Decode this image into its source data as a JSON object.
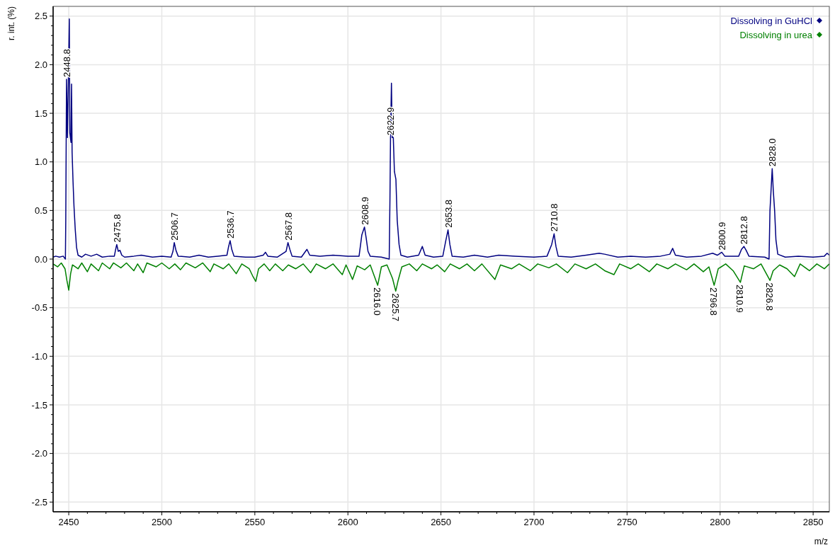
{
  "chart_data": {
    "type": "line",
    "xlabel": "m/z",
    "ylabel": "r. int. (%)",
    "xlim": [
      2441.6,
      2858.7
    ],
    "ylim": [
      -2.6,
      2.6
    ],
    "xticks": [
      2450,
      {
        "value": 2460,
        "label": null
      },
      {
        "value": 2470,
        "label": null
      },
      {
        "value": 2480,
        "label": null
      },
      {
        "value": 2490,
        "label": null
      },
      2500,
      {
        "value": 2510,
        "label": null
      },
      {
        "value": 2520,
        "label": null
      },
      {
        "value": 2530,
        "label": null
      },
      {
        "value": 2540,
        "label": null
      },
      2550,
      {
        "value": 2560,
        "label": null
      },
      {
        "value": 2570,
        "label": null
      },
      {
        "value": 2580,
        "label": null
      },
      {
        "value": 2590,
        "label": null
      },
      2600,
      {
        "value": 2610,
        "label": null
      },
      {
        "value": 2620,
        "label": null
      },
      {
        "value": 2630,
        "label": null
      },
      {
        "value": 2640,
        "label": null
      },
      2650,
      {
        "value": 2660,
        "label": null
      },
      {
        "value": 2670,
        "label": null
      },
      {
        "value": 2680,
        "label": null
      },
      {
        "value": 2690,
        "label": null
      },
      2700,
      {
        "value": 2710,
        "label": null
      },
      {
        "value": 2720,
        "label": null
      },
      {
        "value": 2730,
        "label": null
      },
      {
        "value": 2740,
        "label": null
      },
      2750,
      {
        "value": 2760,
        "label": null
      },
      {
        "value": 2770,
        "label": null
      },
      {
        "value": 2780,
        "label": null
      },
      {
        "value": 2790,
        "label": null
      },
      2800,
      {
        "value": 2810,
        "label": null
      },
      {
        "value": 2820,
        "label": null
      },
      {
        "value": 2830,
        "label": null
      },
      {
        "value": 2840,
        "label": null
      },
      2850
    ],
    "yticks": [
      {
        "value": -2.5,
        "label": "-2.5"
      },
      {
        "value": -2.4,
        "label": null
      },
      {
        "value": -2.3,
        "label": null
      },
      {
        "value": -2.2,
        "label": null
      },
      {
        "value": -2.1,
        "label": null
      },
      {
        "value": -2.0,
        "label": "-2.0"
      },
      {
        "value": -1.9,
        "label": null
      },
      {
        "value": -1.8,
        "label": null
      },
      {
        "value": -1.7,
        "label": null
      },
      {
        "value": -1.6,
        "label": null
      },
      {
        "value": -1.5,
        "label": "-1.5"
      },
      {
        "value": -1.4,
        "label": null
      },
      {
        "value": -1.3,
        "label": null
      },
      {
        "value": -1.2,
        "label": null
      },
      {
        "value": -1.1,
        "label": null
      },
      {
        "value": -1.0,
        "label": "-1.0"
      },
      {
        "value": -0.9,
        "label": null
      },
      {
        "value": -0.8,
        "label": null
      },
      {
        "value": -0.7,
        "label": null
      },
      {
        "value": -0.6,
        "label": null
      },
      {
        "value": -0.5,
        "label": "-0.5"
      },
      {
        "value": -0.4,
        "label": null
      },
      {
        "value": -0.3,
        "label": null
      },
      {
        "value": -0.2,
        "label": null
      },
      {
        "value": -0.1,
        "label": null
      },
      {
        "value": 0,
        "label": "0.0"
      },
      {
        "value": 0.1,
        "label": null
      },
      {
        "value": 0.2,
        "label": null
      },
      {
        "value": 0.3,
        "label": null
      },
      {
        "value": 0.4,
        "label": null
      },
      {
        "value": 0.5,
        "label": "0.5"
      },
      {
        "value": 0.6,
        "label": null
      },
      {
        "value": 0.7,
        "label": null
      },
      {
        "value": 0.8,
        "label": null
      },
      {
        "value": 0.9,
        "label": null
      },
      {
        "value": 1.0,
        "label": "1.0"
      },
      {
        "value": 1.1,
        "label": null
      },
      {
        "value": 1.2,
        "label": null
      },
      {
        "value": 1.3,
        "label": null
      },
      {
        "value": 1.4,
        "label": null
      },
      {
        "value": 1.5,
        "label": "1.5"
      },
      {
        "value": 1.6,
        "label": null
      },
      {
        "value": 1.7,
        "label": null
      },
      {
        "value": 1.8,
        "label": null
      },
      {
        "value": 1.9,
        "label": null
      },
      {
        "value": 2.0,
        "label": "2.0"
      },
      {
        "value": 2.1,
        "label": null
      },
      {
        "value": 2.2,
        "label": null
      },
      {
        "value": 2.3,
        "label": null
      },
      {
        "value": 2.4,
        "label": null
      },
      {
        "value": 2.5,
        "label": "2.5"
      }
    ],
    "grid": true,
    "legend": "top right",
    "series": [
      {
        "name": "Dissolving in GuHCl",
        "color": "#000080",
        "x": [
          2441.6,
          2443,
          2445,
          2447,
          2448.2,
          2448.4,
          2448.8,
          2449.3,
          2449.8,
          2450.3,
          2450.6,
          2451.2,
          2451.5,
          2451.8,
          2452.3,
          2452.8,
          2453.5,
          2454.2,
          2455,
          2457,
          2459,
          2462,
          2465,
          2468,
          2472,
          2474.5,
          2475.2,
          2475.8,
          2476.6,
          2477.5,
          2478.5,
          2480,
          2485,
          2489,
          2495,
          2500,
          2505,
          2506,
          2506.7,
          2507.6,
          2508.8,
          2515,
          2520,
          2525,
          2530,
          2535,
          2535.8,
          2536.7,
          2537.6,
          2538.8,
          2545,
          2550,
          2554.5,
          2555.7,
          2557,
          2562,
          2566.8,
          2567.8,
          2568.8,
          2570,
          2575,
          2578,
          2579.5,
          2585,
          2592,
          2600,
          2606,
          2607.5,
          2608.9,
          2609.8,
          2610.8,
          2612,
          2618,
          2622.2,
          2622.6,
          2622.9,
          2623.4,
          2623.8,
          2624.4,
          2625,
          2625.8,
          2626.5,
          2627.5,
          2628.5,
          2632,
          2638,
          2640,
          2641.5,
          2646,
          2651,
          2652.5,
          2653.8,
          2654.8,
          2656,
          2662,
          2668,
          2675,
          2681,
          2690,
          2700,
          2707,
          2709.5,
          2710.8,
          2711.8,
          2713,
          2720,
          2728,
          2735,
          2738,
          2745,
          2752,
          2760,
          2768,
          2773,
          2774.5,
          2776,
          2782,
          2790,
          2796,
          2798.5,
          2800.9,
          2802.5,
          2810,
          2811.5,
          2812.8,
          2814,
          2815.5,
          2824,
          2826.3,
          2826.8,
          2827.5,
          2828,
          2828.6,
          2829.3,
          2830,
          2831,
          2835,
          2842,
          2850,
          2856,
          2857.5,
          2858.7
        ],
        "values": [
          0.02,
          0.03,
          0.02,
          0.03,
          0.0,
          0.4,
          1.85,
          1.25,
          1.85,
          2.47,
          1.3,
          1.2,
          1.8,
          1.1,
          0.8,
          0.55,
          0.3,
          0.12,
          0.04,
          0.02,
          0.05,
          0.03,
          0.05,
          0.02,
          0.03,
          0.03,
          0.1,
          0.15,
          0.08,
          0.09,
          0.04,
          0.02,
          0.03,
          0.04,
          0.02,
          0.03,
          0.02,
          0.08,
          0.17,
          0.09,
          0.03,
          0.02,
          0.04,
          0.02,
          0.03,
          0.04,
          0.12,
          0.19,
          0.1,
          0.03,
          0.02,
          0.02,
          0.04,
          0.07,
          0.03,
          0.02,
          0.08,
          0.17,
          0.1,
          0.03,
          0.02,
          0.1,
          0.04,
          0.03,
          0.04,
          0.03,
          0.03,
          0.25,
          0.33,
          0.22,
          0.08,
          0.03,
          0.02,
          0.0,
          0.62,
          1.25,
          1.81,
          1.25,
          1.25,
          0.9,
          0.82,
          0.4,
          0.15,
          0.04,
          0.02,
          0.04,
          0.13,
          0.04,
          0.02,
          0.03,
          0.18,
          0.3,
          0.15,
          0.03,
          0.02,
          0.04,
          0.02,
          0.04,
          0.03,
          0.02,
          0.03,
          0.15,
          0.26,
          0.13,
          0.03,
          0.02,
          0.04,
          0.06,
          0.05,
          0.02,
          0.03,
          0.02,
          0.03,
          0.05,
          0.11,
          0.04,
          0.02,
          0.03,
          0.06,
          0.04,
          0.07,
          0.03,
          0.03,
          0.1,
          0.13,
          0.09,
          0.03,
          0.02,
          0.0,
          0.5,
          0.75,
          0.93,
          0.7,
          0.5,
          0.2,
          0.05,
          0.02,
          0.03,
          0.02,
          0.03,
          0.06,
          0.04
        ]
      },
      {
        "name": "Dissolving in urea",
        "color": "#008000",
        "x": [
          2441.6,
          2444,
          2446,
          2448,
          2449,
          2450,
          2451,
          2452,
          2455,
          2457,
          2460,
          2462,
          2466,
          2468,
          2472,
          2474,
          2478,
          2481,
          2485,
          2487,
          2490,
          2492,
          2497,
          2500,
          2504,
          2507,
          2510,
          2513,
          2518,
          2522,
          2526,
          2528,
          2533,
          2536,
          2540,
          2543,
          2547,
          2549,
          2550.5,
          2552,
          2555,
          2558,
          2561,
          2565,
          2568,
          2572,
          2576,
          2580,
          2583,
          2588,
          2592,
          2597,
          2599,
          2602.5,
          2605,
          2609,
          2612,
          2616,
          2618,
          2621,
          2624,
          2625.7,
          2627,
          2629,
          2633,
          2637,
          2640,
          2645,
          2648,
          2652,
          2655,
          2660,
          2664,
          2668,
          2672,
          2679,
          2682,
          2688,
          2692,
          2698,
          2702,
          2708,
          2712,
          2718,
          2722,
          2728,
          2733,
          2738,
          2743,
          2746,
          2752,
          2756,
          2762,
          2766,
          2772,
          2776,
          2782,
          2786,
          2791,
          2794,
          2796.8,
          2799,
          2803,
          2807,
          2810.9,
          2813,
          2818,
          2822,
          2826.8,
          2828.5,
          2832,
          2836,
          2840,
          2843,
          2848,
          2852,
          2856,
          2858.7
        ],
        "values": [
          -0.05,
          -0.08,
          -0.04,
          -0.1,
          -0.22,
          -0.32,
          -0.15,
          -0.06,
          -0.1,
          -0.04,
          -0.13,
          -0.05,
          -0.12,
          -0.04,
          -0.1,
          -0.04,
          -0.09,
          -0.04,
          -0.12,
          -0.05,
          -0.14,
          -0.04,
          -0.08,
          -0.04,
          -0.1,
          -0.05,
          -0.11,
          -0.04,
          -0.09,
          -0.04,
          -0.13,
          -0.05,
          -0.1,
          -0.05,
          -0.15,
          -0.05,
          -0.1,
          -0.18,
          -0.23,
          -0.1,
          -0.05,
          -0.12,
          -0.05,
          -0.12,
          -0.06,
          -0.1,
          -0.05,
          -0.14,
          -0.05,
          -0.1,
          -0.05,
          -0.16,
          -0.06,
          -0.21,
          -0.07,
          -0.11,
          -0.06,
          -0.27,
          -0.08,
          -0.06,
          -0.2,
          -0.33,
          -0.22,
          -0.08,
          -0.05,
          -0.12,
          -0.05,
          -0.1,
          -0.06,
          -0.13,
          -0.05,
          -0.1,
          -0.05,
          -0.12,
          -0.05,
          -0.21,
          -0.06,
          -0.1,
          -0.05,
          -0.12,
          -0.05,
          -0.09,
          -0.05,
          -0.14,
          -0.05,
          -0.1,
          -0.05,
          -0.12,
          -0.16,
          -0.05,
          -0.1,
          -0.05,
          -0.13,
          -0.05,
          -0.1,
          -0.05,
          -0.11,
          -0.05,
          -0.13,
          -0.08,
          -0.27,
          -0.1,
          -0.05,
          -0.12,
          -0.24,
          -0.07,
          -0.1,
          -0.05,
          -0.22,
          -0.12,
          -0.06,
          -0.1,
          -0.18,
          -0.05,
          -0.12,
          -0.05,
          -0.1,
          -0.05
        ]
      }
    ],
    "annotations": [
      {
        "text": "2448.8",
        "x": 2448.8,
        "y": 1.85
      },
      {
        "text": "2475.8",
        "x": 2475.8,
        "y": 0.15
      },
      {
        "text": "2506.7",
        "x": 2506.7,
        "y": 0.17
      },
      {
        "text": "2536.7",
        "x": 2536.7,
        "y": 0.19
      },
      {
        "text": "2567.8",
        "x": 2567.8,
        "y": 0.17
      },
      {
        "text": "2608.9",
        "x": 2608.9,
        "y": 0.33
      },
      {
        "text": "2622.9",
        "x": 2622.9,
        "y": 1.25
      },
      {
        "text": "2653.8",
        "x": 2653.8,
        "y": 0.3
      },
      {
        "text": "2710.8",
        "x": 2710.8,
        "y": 0.26
      },
      {
        "text": "2800.9",
        "x": 2800.9,
        "y": 0.07
      },
      {
        "text": "2812.8",
        "x": 2812.8,
        "y": 0.13
      },
      {
        "text": "2828.0",
        "x": 2828,
        "y": 0.93
      },
      {
        "text": "2616.0",
        "x": 2616,
        "y": -0.27
      },
      {
        "text": "2625.7",
        "x": 2625.7,
        "y": -0.33
      },
      {
        "text": "2796.8",
        "x": 2796.8,
        "y": -0.27
      },
      {
        "text": "2810.9",
        "x": 2810.9,
        "y": -0.24
      },
      {
        "text": "2826.8",
        "x": 2826.8,
        "y": -0.22
      }
    ]
  }
}
